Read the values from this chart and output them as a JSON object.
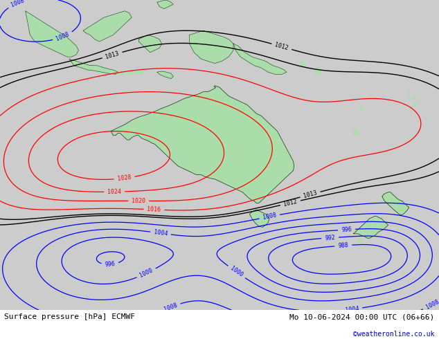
{
  "title_left": "Surface pressure [hPa] ECMWF",
  "title_right": "Mo 10-06-2024 00:00 UTC (06+66)",
  "credit": "©weatheronline.co.uk",
  "credit_color": "#0000cc",
  "background_color": "#ffffff",
  "fig_width": 6.34,
  "fig_height": 4.9,
  "dpi": 100,
  "lon_min": 90,
  "lon_max": 185,
  "lat_min": -63,
  "lat_max": 8,
  "land_color": "#aaddaa",
  "sea_color": "#cccccc",
  "isobar_color_low": "#0000ff",
  "isobar_color_high": "#ff0000",
  "isobar_color_neutral": "#000000",
  "label_fontsize": 6,
  "title_fontsize": 8,
  "neutral_threshold": 1013.5,
  "high_threshold": 1013.5
}
